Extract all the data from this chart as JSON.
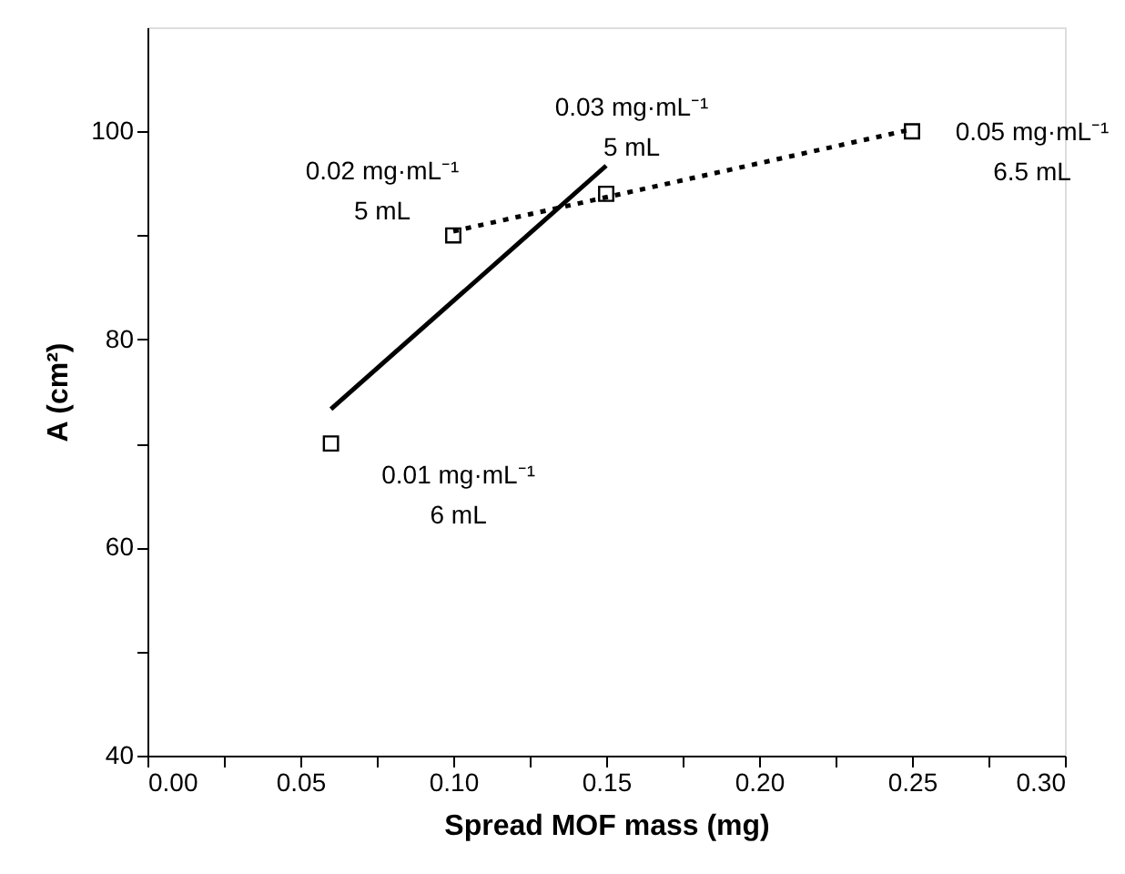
{
  "chart_data": {
    "type": "scatter",
    "xlabel": "Spread MOF mass (mg)",
    "ylabel": "A (cm²)",
    "xlim": [
      0,
      0.3
    ],
    "ylim": [
      40,
      110
    ],
    "xticks": [
      {
        "value": 0,
        "label": "0.00"
      },
      {
        "value": 0.025,
        "label": null
      },
      {
        "value": 0.05,
        "label": "0.05"
      },
      {
        "value": 0.075,
        "label": null
      },
      {
        "value": 0.1,
        "label": "0.10"
      },
      {
        "value": 0.125,
        "label": null
      },
      {
        "value": 0.15,
        "label": "0.15"
      },
      {
        "value": 0.175,
        "label": null
      },
      {
        "value": 0.2,
        "label": "0.20"
      },
      {
        "value": 0.225,
        "label": null
      },
      {
        "value": 0.25,
        "label": "0.25"
      },
      {
        "value": 0.275,
        "label": null
      },
      {
        "value": 0.3,
        "label": "0.30"
      }
    ],
    "yticks": [
      40,
      {
        "value": 50,
        "label": null
      },
      60,
      {
        "value": 70,
        "label": null
      },
      80,
      {
        "value": 90,
        "label": null
      },
      100
    ],
    "grid": false,
    "series": [
      {
        "type": "scatter",
        "marker": "square",
        "color": "#000000",
        "x": [
          0.06,
          0.1,
          0.15,
          0.25
        ],
        "values": [
          70,
          90,
          94,
          100
        ]
      },
      {
        "type": "line",
        "line_style": "solid",
        "marker": "none",
        "color": "#000000",
        "x": [
          0.06,
          0.15
        ],
        "values": [
          73.3,
          96.7
        ]
      },
      {
        "type": "line",
        "line_style": "dotted",
        "marker": "none",
        "color": "#000000",
        "x": [
          0.1,
          0.25
        ],
        "values": [
          90.4,
          100.2
        ]
      }
    ],
    "annotations": [
      {
        "text": "0.01 mg·mL⁻¹\n6 mL",
        "x": 0.06,
        "y": 70
      },
      {
        "text": "0.02 mg·mL⁻¹\n5 mL",
        "x": 0.1,
        "y": 90
      },
      {
        "text": "0.03 mg·mL⁻¹\n5 mL",
        "x": 0.15,
        "y": 94
      },
      {
        "text": "0.05 mg·mL⁻¹\n6.5 mL",
        "x": 0.25,
        "y": 100
      }
    ]
  }
}
